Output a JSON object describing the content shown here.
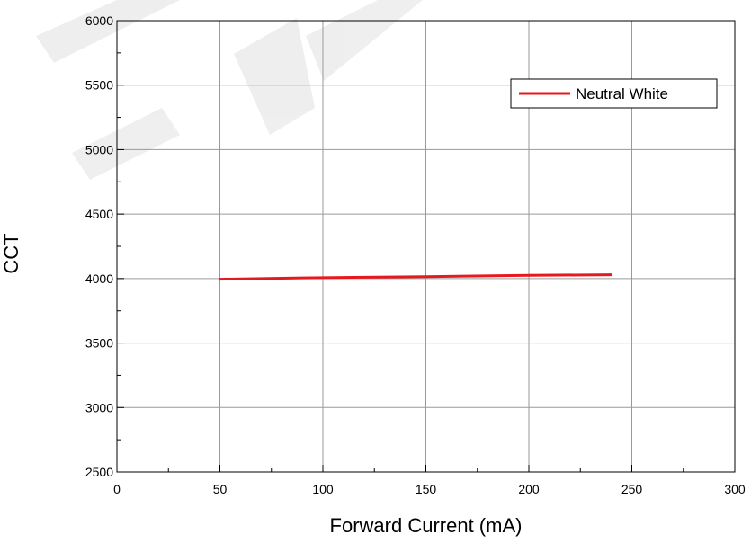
{
  "chart_data": {
    "type": "line",
    "xlabel": "Forward Current (mA)",
    "ylabel": "CCT",
    "xlim": [
      0,
      300
    ],
    "ylim": [
      2500,
      6000
    ],
    "x_ticks": [
      0,
      50,
      100,
      150,
      200,
      250,
      300
    ],
    "y_ticks": [
      2500,
      3000,
      3500,
      4000,
      4500,
      5000,
      5500,
      6000
    ],
    "x_tick_labels": [
      "0",
      "50",
      "100",
      "150",
      "200",
      "250",
      "300"
    ],
    "y_tick_labels": [
      "2500",
      "3000",
      "3500",
      "4000",
      "4500",
      "5000",
      "5500",
      "6000"
    ],
    "grid": true,
    "legend_position": "top-right",
    "series": [
      {
        "name": "Neutral White",
        "color": "#e8191e",
        "x": [
          50,
          90,
          120,
          150,
          200,
          240
        ],
        "y": [
          3995,
          4005,
          4010,
          4015,
          4025,
          4030
        ]
      }
    ]
  }
}
